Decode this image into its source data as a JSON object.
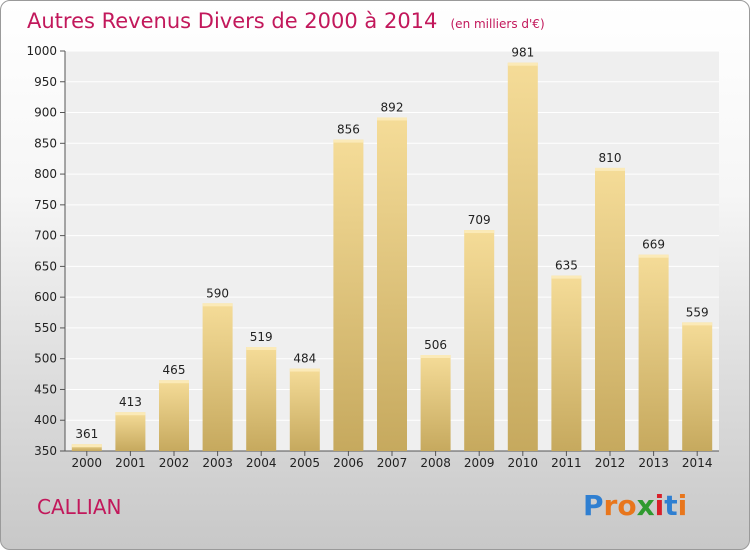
{
  "chart_data": {
    "type": "bar",
    "title": "Autres Revenus Divers de 2000 à 2014",
    "subtitle": "(en milliers d'€)",
    "categories": [
      "2000",
      "2001",
      "2002",
      "2003",
      "2004",
      "2005",
      "2006",
      "2007",
      "2008",
      "2009",
      "2010",
      "2011",
      "2012",
      "2013",
      "2014"
    ],
    "values": [
      361,
      413,
      465,
      590,
      519,
      484,
      856,
      892,
      506,
      709,
      981,
      635,
      810,
      669,
      559
    ],
    "ylim": [
      350,
      1000
    ],
    "yticks": [
      350,
      400,
      450,
      500,
      550,
      600,
      650,
      700,
      750,
      800,
      850,
      900,
      950,
      1000
    ],
    "grid": true,
    "bar_color": "#e3c47f"
  },
  "footer": {
    "location": "CALLIAN",
    "logo_letters": [
      "P",
      "r",
      "o",
      "x",
      "i",
      "t",
      "i"
    ],
    "logo_colors": [
      "#2f7fd1",
      "#e8761c",
      "#e8761c",
      "#2f9a2f",
      "#d8202a",
      "#2f7fd1",
      "#e8761c"
    ]
  }
}
